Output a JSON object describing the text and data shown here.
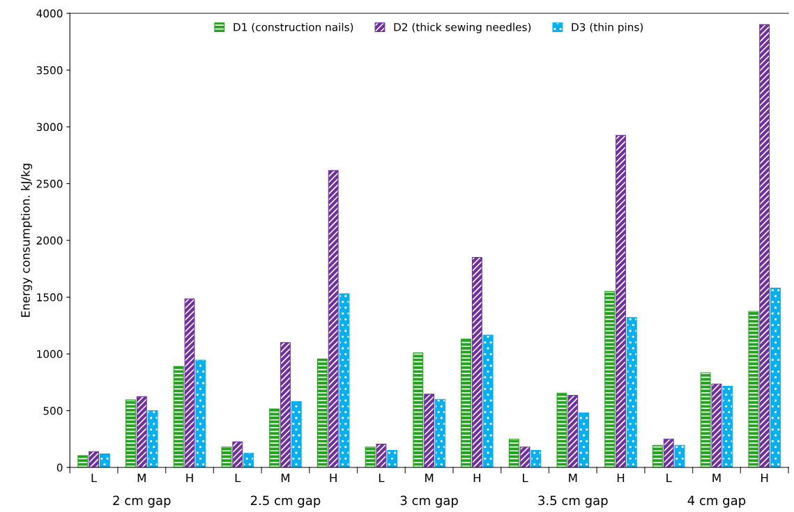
{
  "chart_data": {
    "type": "bar",
    "ylabel": "Energy consumption. kJ/kg",
    "categories": [
      "L",
      "M",
      "H",
      "L",
      "M",
      "H",
      "L",
      "M",
      "H",
      "L",
      "M",
      "H",
      "L",
      "M",
      "H"
    ],
    "series": [
      {
        "name": "D1 (construction nails)",
        "color": "#22a41c",
        "values": [
          105,
          595,
          890,
          180,
          515,
          955,
          180,
          1010,
          1130,
          250,
          655,
          1550,
          195,
          835,
          1375
        ]
      },
      {
        "name": "D2 (thick sewing needles)",
        "color": "#7030a0",
        "values": [
          140,
          625,
          1485,
          225,
          1100,
          2615,
          205,
          645,
          1850,
          180,
          635,
          2925,
          250,
          735,
          3900
        ]
      },
      {
        "name": "D3 (thin pins)",
        "color": "#00b0f0",
        "values": [
          120,
          500,
          945,
          125,
          580,
          1530,
          150,
          600,
          1165,
          150,
          480,
          1320,
          195,
          715,
          1580
        ]
      }
    ],
    "annotations": [
      "2 cm gap",
      "2.5 cm gap",
      "3 cm gap",
      "3.5 cm gap",
      "4 cm gap"
    ],
    "ylim": [
      0,
      4000
    ],
    "yticks": [
      0,
      500,
      1000,
      1500,
      2000,
      2500,
      3000,
      3500,
      4000
    ],
    "grid": false,
    "legend": "top"
  }
}
